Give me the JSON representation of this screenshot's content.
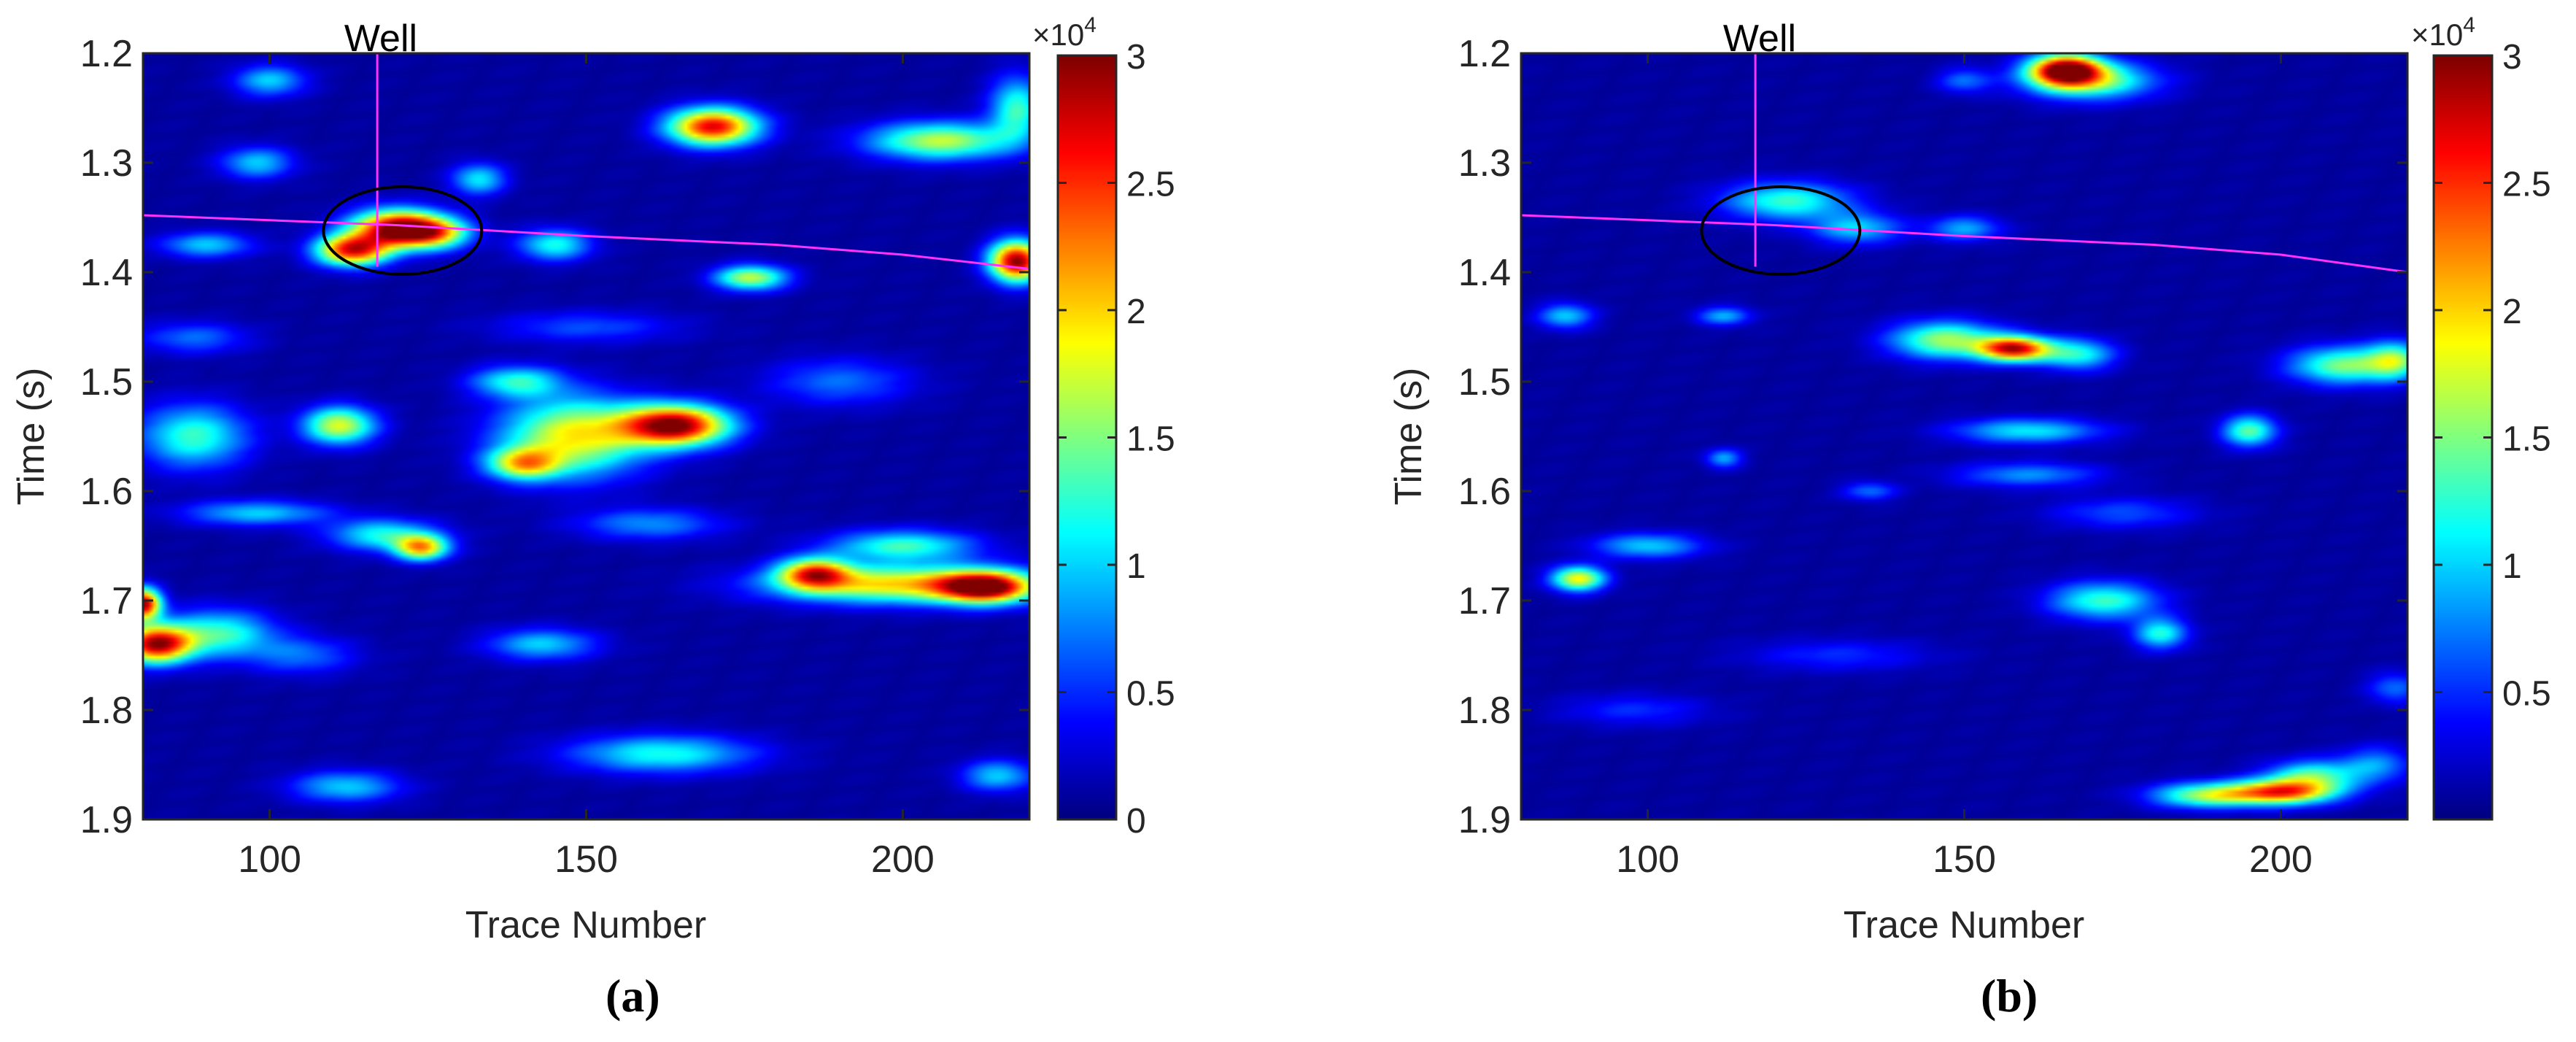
{
  "chart_data": [
    {
      "type": "heatmap",
      "panel": "(a)",
      "xlabel": "Trace Number",
      "ylabel": "Time (s)",
      "xlim": [
        80,
        220
      ],
      "ylim": [
        1.2,
        1.9
      ],
      "y_reversed": true,
      "xticks": [
        100,
        150,
        200
      ],
      "xtick_labels": [
        "100",
        "150",
        "200"
      ],
      "yticks": [
        1.2,
        1.3,
        1.4,
        1.5,
        1.6,
        1.7,
        1.8,
        1.9
      ],
      "ytick_labels": [
        "1.2",
        "1.3",
        "1.4",
        "1.5",
        "1.6",
        "1.7",
        "1.8",
        "1.9"
      ],
      "colormap": "jet",
      "clim": [
        0,
        30000
      ],
      "colorbar_ticks": [
        0,
        0.5,
        1,
        1.5,
        2,
        2.5,
        3
      ],
      "colorbar_tick_labels": [
        "0",
        "0.5",
        "1",
        "1.5",
        "2",
        "2.5",
        "3"
      ],
      "colorbar_exponent": "×10",
      "colorbar_exponent_power": "4",
      "well": {
        "label": "Well",
        "trace": 117,
        "t_top": 1.2,
        "t_bottom": 1.395
      },
      "horizon": {
        "color": "#ff33ff",
        "points": [
          [
            80,
            1.348
          ],
          [
            120,
            1.357
          ],
          [
            150,
            1.367
          ],
          [
            180,
            1.375
          ],
          [
            200,
            1.384
          ],
          [
            220,
            1.397
          ]
        ]
      },
      "ellipse": {
        "cx": 121,
        "cy": 1.362,
        "rx": 12.5,
        "ry": 0.04,
        "color": "#000000"
      },
      "blobs": [
        {
          "x": 120,
          "t": 1.36,
          "amp": 28000,
          "sx": 5,
          "st": 0.012
        },
        {
          "x": 113,
          "t": 1.38,
          "amp": 25000,
          "sx": 4,
          "st": 0.01
        },
        {
          "x": 126,
          "t": 1.364,
          "amp": 16000,
          "sx": 4,
          "st": 0.01
        },
        {
          "x": 218,
          "t": 1.39,
          "amp": 29000,
          "sx": 3,
          "st": 0.013
        },
        {
          "x": 170,
          "t": 1.267,
          "amp": 26000,
          "sx": 5,
          "st": 0.012
        },
        {
          "x": 164,
          "t": 1.54,
          "amp": 29000,
          "sx": 6,
          "st": 0.013
        },
        {
          "x": 148,
          "t": 1.55,
          "amp": 18000,
          "sx": 8,
          "st": 0.025
        },
        {
          "x": 140,
          "t": 1.575,
          "amp": 16000,
          "sx": 4,
          "st": 0.01
        },
        {
          "x": 111,
          "t": 1.54,
          "amp": 17000,
          "sx": 4,
          "st": 0.012
        },
        {
          "x": 88,
          "t": 1.55,
          "amp": 12000,
          "sx": 6,
          "st": 0.02
        },
        {
          "x": 200,
          "t": 1.685,
          "amp": 19000,
          "sx": 14,
          "st": 0.012
        },
        {
          "x": 213,
          "t": 1.688,
          "amp": 24000,
          "sx": 5,
          "st": 0.01
        },
        {
          "x": 186,
          "t": 1.675,
          "amp": 20000,
          "sx": 4,
          "st": 0.01
        },
        {
          "x": 200,
          "t": 1.65,
          "amp": 12000,
          "sx": 8,
          "st": 0.01
        },
        {
          "x": 82,
          "t": 1.74,
          "amp": 27000,
          "sx": 4,
          "st": 0.012
        },
        {
          "x": 80,
          "t": 1.703,
          "amp": 28000,
          "sx": 2,
          "st": 0.01
        },
        {
          "x": 92,
          "t": 1.73,
          "amp": 12000,
          "sx": 6,
          "st": 0.015
        },
        {
          "x": 124,
          "t": 1.652,
          "amp": 19000,
          "sx": 3,
          "st": 0.008
        },
        {
          "x": 118,
          "t": 1.64,
          "amp": 11000,
          "sx": 6,
          "st": 0.01
        },
        {
          "x": 139,
          "t": 1.5,
          "amp": 11000,
          "sx": 5,
          "st": 0.01
        },
        {
          "x": 176,
          "t": 1.405,
          "amp": 16000,
          "sx": 4,
          "st": 0.008
        },
        {
          "x": 145,
          "t": 1.375,
          "amp": 11000,
          "sx": 4,
          "st": 0.01
        },
        {
          "x": 133,
          "t": 1.315,
          "amp": 10000,
          "sx": 3,
          "st": 0.01
        },
        {
          "x": 206,
          "t": 1.28,
          "amp": 16000,
          "sx": 8,
          "st": 0.012
        },
        {
          "x": 218,
          "t": 1.25,
          "amp": 12000,
          "sx": 3,
          "st": 0.02
        },
        {
          "x": 98,
          "t": 1.3,
          "amp": 9000,
          "sx": 4,
          "st": 0.01
        },
        {
          "x": 90,
          "t": 1.375,
          "amp": 9000,
          "sx": 5,
          "st": 0.008
        },
        {
          "x": 100,
          "t": 1.225,
          "amp": 9000,
          "sx": 4,
          "st": 0.01
        },
        {
          "x": 162,
          "t": 1.84,
          "amp": 11000,
          "sx": 10,
          "st": 0.012
        },
        {
          "x": 112,
          "t": 1.87,
          "amp": 9000,
          "sx": 6,
          "st": 0.01
        },
        {
          "x": 143,
          "t": 1.74,
          "amp": 9000,
          "sx": 6,
          "st": 0.01
        },
        {
          "x": 215,
          "t": 1.86,
          "amp": 9000,
          "sx": 4,
          "st": 0.01
        },
        {
          "x": 98,
          "t": 1.62,
          "amp": 9000,
          "sx": 8,
          "st": 0.008
        },
        {
          "x": 88,
          "t": 1.46,
          "amp": 6000,
          "sx": 6,
          "st": 0.01
        },
        {
          "x": 160,
          "t": 1.63,
          "amp": 7000,
          "sx": 8,
          "st": 0.01
        },
        {
          "x": 105,
          "t": 1.75,
          "amp": 6000,
          "sx": 6,
          "st": 0.012
        },
        {
          "x": 190,
          "t": 1.5,
          "amp": 6000,
          "sx": 8,
          "st": 0.015
        },
        {
          "x": 150,
          "t": 1.45,
          "amp": 5000,
          "sx": 10,
          "st": 0.01
        }
      ]
    },
    {
      "type": "heatmap",
      "panel": "(b)",
      "xlabel": "Trace Number",
      "ylabel": "Time (s)",
      "xlim": [
        80,
        220
      ],
      "ylim": [
        1.2,
        1.9
      ],
      "y_reversed": true,
      "xticks": [
        100,
        150,
        200
      ],
      "xtick_labels": [
        "100",
        "150",
        "200"
      ],
      "yticks": [
        1.2,
        1.3,
        1.4,
        1.5,
        1.6,
        1.7,
        1.8,
        1.9
      ],
      "ytick_labels": [
        "1.2",
        "1.3",
        "1.4",
        "1.5",
        "1.6",
        "1.7",
        "1.8",
        "1.9"
      ],
      "colormap": "jet",
      "clim": [
        0,
        30000
      ],
      "colorbar_ticks": [
        0.5,
        1,
        1.5,
        2,
        2.5,
        3
      ],
      "colorbar_tick_labels": [
        "0.5",
        "1",
        "1.5",
        "2",
        "2.5",
        "3"
      ],
      "colorbar_exponent": "×10",
      "colorbar_exponent_power": "4",
      "well": {
        "label": "Well",
        "trace": 117,
        "t_top": 1.2,
        "t_bottom": 1.395
      },
      "horizon": {
        "color": "#ff33ff",
        "points": [
          [
            80,
            1.348
          ],
          [
            120,
            1.357
          ],
          [
            150,
            1.367
          ],
          [
            180,
            1.375
          ],
          [
            200,
            1.384
          ],
          [
            220,
            1.4
          ]
        ]
      },
      "ellipse": {
        "cx": 121,
        "cy": 1.362,
        "rx": 12.5,
        "ry": 0.04,
        "color": "#000000"
      },
      "blobs": [
        {
          "x": 166,
          "t": 1.215,
          "amp": 28000,
          "sx": 4,
          "st": 0.01
        },
        {
          "x": 170,
          "t": 1.225,
          "amp": 14000,
          "sx": 7,
          "st": 0.012
        },
        {
          "x": 122,
          "t": 1.335,
          "amp": 12000,
          "sx": 7,
          "st": 0.012
        },
        {
          "x": 133,
          "t": 1.36,
          "amp": 9000,
          "sx": 5,
          "st": 0.01
        },
        {
          "x": 158,
          "t": 1.47,
          "amp": 26000,
          "sx": 4,
          "st": 0.008
        },
        {
          "x": 147,
          "t": 1.462,
          "amp": 15000,
          "sx": 6,
          "st": 0.012
        },
        {
          "x": 168,
          "t": 1.475,
          "amp": 11000,
          "sx": 4,
          "st": 0.01
        },
        {
          "x": 210,
          "t": 1.485,
          "amp": 14000,
          "sx": 6,
          "st": 0.012
        },
        {
          "x": 218,
          "t": 1.48,
          "amp": 12000,
          "sx": 3,
          "st": 0.012
        },
        {
          "x": 195,
          "t": 1.545,
          "amp": 13000,
          "sx": 3,
          "st": 0.01
        },
        {
          "x": 160,
          "t": 1.545,
          "amp": 10000,
          "sx": 8,
          "st": 0.008
        },
        {
          "x": 89,
          "t": 1.68,
          "amp": 18000,
          "sx": 3,
          "st": 0.008
        },
        {
          "x": 172,
          "t": 1.7,
          "amp": 12000,
          "sx": 6,
          "st": 0.012
        },
        {
          "x": 181,
          "t": 1.73,
          "amp": 11000,
          "sx": 3,
          "st": 0.01
        },
        {
          "x": 200,
          "t": 1.875,
          "amp": 22000,
          "sx": 6,
          "st": 0.008
        },
        {
          "x": 188,
          "t": 1.878,
          "amp": 14000,
          "sx": 6,
          "st": 0.008
        },
        {
          "x": 205,
          "t": 1.86,
          "amp": 12000,
          "sx": 5,
          "st": 0.01
        },
        {
          "x": 215,
          "t": 1.85,
          "amp": 7000,
          "sx": 4,
          "st": 0.012
        },
        {
          "x": 100,
          "t": 1.65,
          "amp": 9000,
          "sx": 6,
          "st": 0.008
        },
        {
          "x": 112,
          "t": 1.57,
          "amp": 8000,
          "sx": 2,
          "st": 0.006
        },
        {
          "x": 87,
          "t": 1.44,
          "amp": 9000,
          "sx": 3,
          "st": 0.008
        },
        {
          "x": 112,
          "t": 1.44,
          "amp": 8000,
          "sx": 3,
          "st": 0.006
        },
        {
          "x": 135,
          "t": 1.6,
          "amp": 6000,
          "sx": 3,
          "st": 0.006
        },
        {
          "x": 160,
          "t": 1.585,
          "amp": 7000,
          "sx": 8,
          "st": 0.008
        },
        {
          "x": 150,
          "t": 1.36,
          "amp": 8000,
          "sx": 4,
          "st": 0.008
        },
        {
          "x": 150,
          "t": 1.225,
          "amp": 6000,
          "sx": 3,
          "st": 0.008
        },
        {
          "x": 218,
          "t": 1.78,
          "amp": 6000,
          "sx": 3,
          "st": 0.01
        },
        {
          "x": 175,
          "t": 1.62,
          "amp": 5000,
          "sx": 8,
          "st": 0.01
        },
        {
          "x": 130,
          "t": 1.75,
          "amp": 4000,
          "sx": 10,
          "st": 0.01
        },
        {
          "x": 98,
          "t": 1.8,
          "amp": 4000,
          "sx": 8,
          "st": 0.01
        }
      ]
    }
  ]
}
